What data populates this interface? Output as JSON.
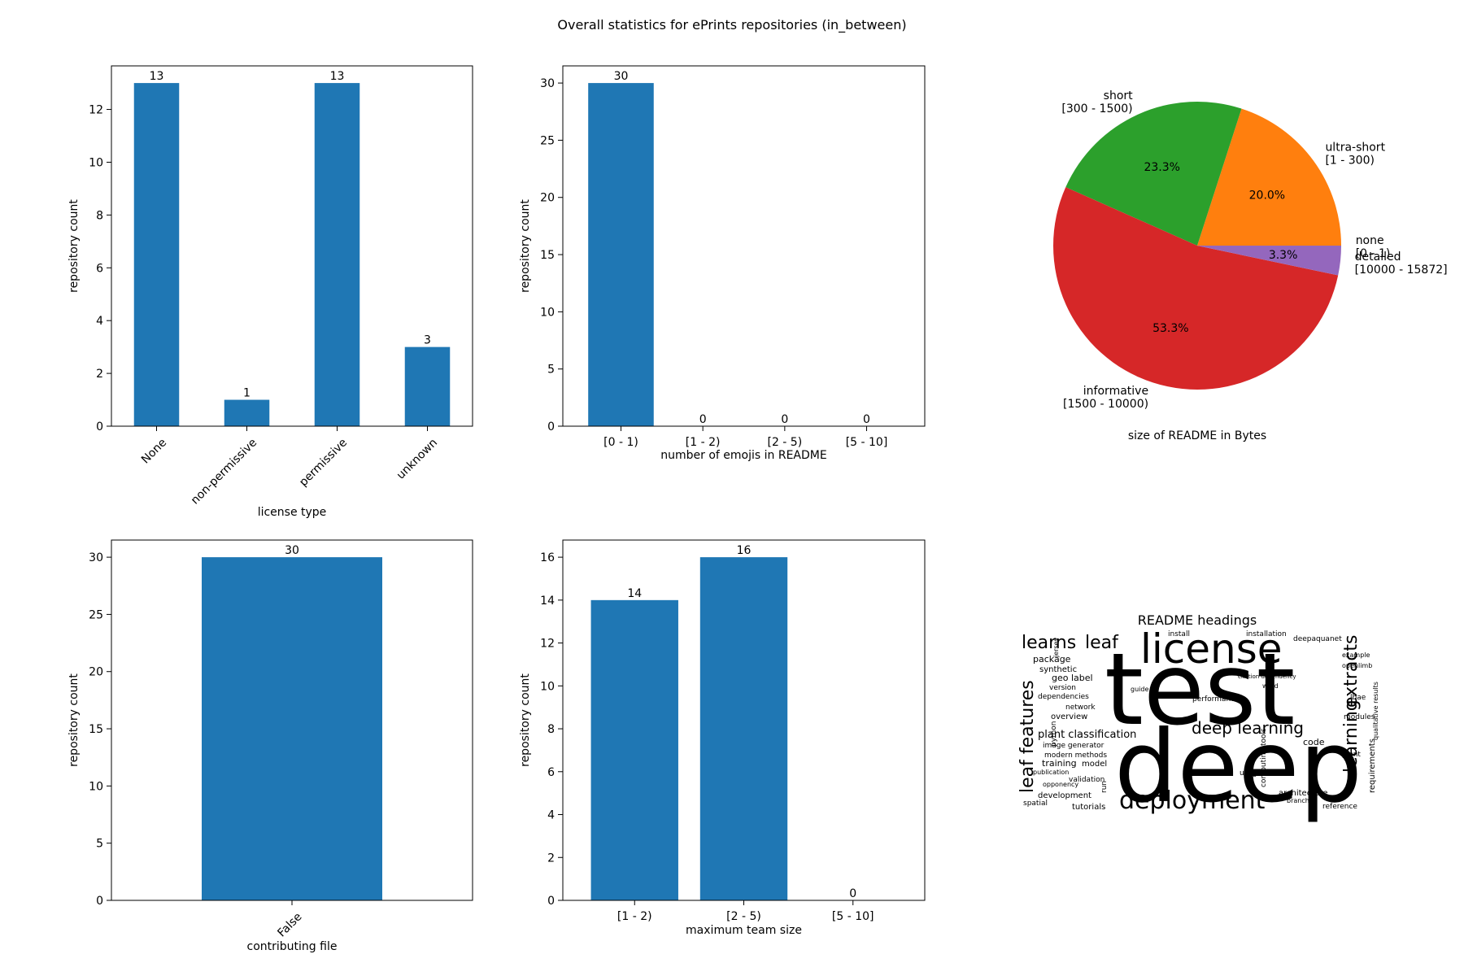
{
  "figure": {
    "title": "Overall statistics for ePrints repositories (in_between)"
  },
  "chart_data": [
    {
      "id": "license",
      "type": "bar",
      "categories": [
        "None",
        "non-permissive",
        "permissive",
        "unknown"
      ],
      "values": [
        13,
        1,
        13,
        3
      ],
      "value_labels": [
        "13",
        "1",
        "13",
        "3"
      ],
      "xlabel": "license type",
      "ylabel": "repository count",
      "ylim": [
        0,
        13.65
      ],
      "yticks": [
        0,
        2,
        4,
        6,
        8,
        10,
        12
      ],
      "xtick_rotation": 45,
      "color": "#1f77b4"
    },
    {
      "id": "emojis",
      "type": "bar",
      "categories": [
        "[0 - 1)",
        "[1 - 2)",
        "[2 - 5)",
        "[5 - 10]"
      ],
      "values": [
        30,
        0,
        0,
        0
      ],
      "value_labels": [
        "30",
        "0",
        "0",
        "0"
      ],
      "xlabel": "number of emojis in README",
      "ylabel": "repository count",
      "ylim": [
        0,
        31.5
      ],
      "yticks": [
        0,
        5,
        10,
        15,
        20,
        25,
        30
      ],
      "xtick_rotation": 0,
      "color": "#1f77b4"
    },
    {
      "id": "readme_size",
      "type": "pie",
      "xlabel": "size of README in Bytes",
      "slices": [
        {
          "label": "none\n[0 - 1)",
          "value": 0.0,
          "pct": "0.0%",
          "color": "#1f77b4"
        },
        {
          "label": "ultra-short\n[1 - 300)",
          "value": 20.0,
          "pct": "20.0%",
          "color": "#ff7f0e"
        },
        {
          "label": "short\n[300 - 1500)",
          "value": 23.3,
          "pct": "23.3%",
          "color": "#2ca02c"
        },
        {
          "label": "informative\n[1500 - 10000)",
          "value": 53.3,
          "pct": "53.3%",
          "color": "#d62728"
        },
        {
          "label": "detailed\n[10000 - 15872]",
          "value": 3.3,
          "pct": "3.3%",
          "color": "#9467bd"
        }
      ]
    },
    {
      "id": "contributing",
      "type": "bar",
      "categories": [
        "False"
      ],
      "values": [
        30
      ],
      "value_labels": [
        "30"
      ],
      "xlabel": "contributing file",
      "ylabel": "repository count",
      "ylim": [
        0,
        31.5
      ],
      "yticks": [
        0,
        5,
        10,
        15,
        20,
        25,
        30
      ],
      "xtick_rotation": 45,
      "color": "#1f77b4"
    },
    {
      "id": "team_size",
      "type": "bar",
      "categories": [
        "[1 - 2)",
        "[2 - 5)",
        "[5 - 10]"
      ],
      "values": [
        14,
        16,
        0
      ],
      "value_labels": [
        "14",
        "16",
        "0"
      ],
      "xlabel": "maximum team size",
      "ylabel": "repository count",
      "ylim": [
        0,
        16.8
      ],
      "yticks": [
        0,
        2,
        4,
        6,
        8,
        10,
        12,
        14,
        16
      ],
      "xtick_rotation": 0,
      "color": "#1f77b4"
    }
  ],
  "wordcloud": {
    "title": "README headings",
    "words": [
      {
        "text": "test",
        "color": "#21a685"
      },
      {
        "text": "deep",
        "color": "#3b4a8c"
      },
      {
        "text": "license",
        "color": "#3b4a8c"
      },
      {
        "text": "deployment",
        "color": "#b5de2b"
      },
      {
        "text": "deep learning",
        "color": "#2fb47c"
      },
      {
        "text": "learning",
        "color": "#3e4c8a"
      },
      {
        "text": "extracts",
        "color": "#433e85"
      },
      {
        "text": "leaf features",
        "color": "#2a9b89"
      },
      {
        "text": "learns",
        "color": "#472f7d"
      },
      {
        "text": "leaf",
        "color": "#3e4a89"
      },
      {
        "text": "plant classification",
        "color": "#2d708e"
      },
      {
        "text": "package",
        "color": "#35b779"
      },
      {
        "text": "synthetic",
        "color": "#46327e"
      },
      {
        "text": "geo label",
        "color": "#a2da37"
      },
      {
        "text": "version",
        "color": "#7ad151"
      },
      {
        "text": "dependencies",
        "color": "#2c728e"
      },
      {
        "text": "network",
        "color": "#31688e"
      },
      {
        "text": "overview",
        "color": "#3b528b"
      },
      {
        "text": "image generator",
        "color": "#414487"
      },
      {
        "text": "modern methods",
        "color": "#6ccd5a"
      },
      {
        "text": "training",
        "color": "#28ae80"
      },
      {
        "text": "model",
        "color": "#5ec962"
      },
      {
        "text": "publication",
        "color": "#482475"
      },
      {
        "text": "validation",
        "color": "#2c728e"
      },
      {
        "text": "opponency",
        "color": "#440154"
      },
      {
        "text": "development",
        "color": "#355f8d"
      },
      {
        "text": "spatial",
        "color": "#39568c"
      },
      {
        "text": "tutorials",
        "color": "#1f9e89"
      },
      {
        "text": "code",
        "color": "#424086"
      },
      {
        "text": "usage",
        "color": "#39568c"
      },
      {
        "text": "architecture",
        "color": "#7fd34e"
      },
      {
        "text": "branch",
        "color": "#2a788e"
      },
      {
        "text": "reference",
        "color": "#3e4989"
      },
      {
        "text": "requirements",
        "color": "#414487"
      },
      {
        "text": "plant",
        "color": "#3e4a89"
      },
      {
        "text": "modules",
        "color": "#b8de29"
      },
      {
        "text": "performance",
        "color": "#2e6f8e"
      },
      {
        "text": "installation",
        "color": "#3b528b"
      },
      {
        "text": "install",
        "color": "#4ac16d"
      },
      {
        "text": "deepaquanet",
        "color": "#c8e020"
      },
      {
        "text": "example",
        "color": "#3f4788"
      },
      {
        "text": "openlimb",
        "color": "#277f8e"
      },
      {
        "text": "lbae",
        "color": "#3b528b"
      },
      {
        "text": "guide",
        "color": "#8bd646"
      },
      {
        "text": "word",
        "color": "#d2e21b"
      },
      {
        "text": "python",
        "color": "#38588c"
      },
      {
        "text": "run",
        "color": "#3f4788"
      },
      {
        "text": "qualitative results",
        "color": "#b5de2b"
      },
      {
        "text": "citation dependency",
        "color": "#31688e"
      },
      {
        "text": "computing tools",
        "color": "#2c738e"
      },
      {
        "text": "jersey",
        "color": "#482878"
      }
    ]
  }
}
